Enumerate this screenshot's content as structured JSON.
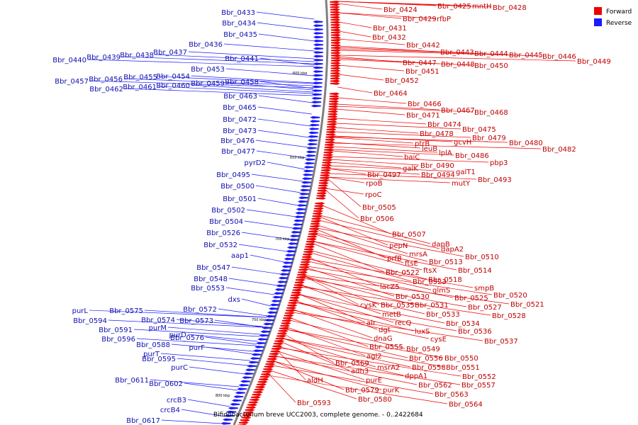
{
  "caption": "Bifidobacterium breve UCC2003, complete genome. - 0..2422684",
  "legend": [
    {
      "name": "Forward",
      "color": "#ee0000"
    },
    {
      "name": "Reverse",
      "color": "#1a1aff"
    }
  ],
  "colors": {
    "forward": "#ee0000",
    "reverse": "#1a1aff",
    "forward_text": "#c00000",
    "reverse_text": "#1010b0",
    "backbone": "#808080"
  },
  "ticks": [
    "600 kbp",
    "650 kbp",
    "700 kbp",
    "750 kbp",
    "800 kbp"
  ],
  "forward_labels": [
    "Bbr_0424",
    "Bbr_0425",
    "mntH",
    "Bbr_0428",
    "Bbr_0429",
    "rfbP",
    "Bbr_0431",
    "Bbr_0432",
    "Bbr_0442",
    "Bbr_0443",
    "Bbr_0444",
    "Bbr_0445",
    "Bbr_0446",
    "Bbr_0449",
    "Bbr_0447",
    "Bbr_0448",
    "Bbr_0450",
    "Bbr_0451",
    "Bbr_0452",
    "Bbr_0464",
    "Bbr_0466",
    "Bbr_0467",
    "Bbr_0468",
    "Bbr_0471",
    "Bbr_0474",
    "Bbr_0475",
    "Bbr_0478",
    "Bbr_0479",
    "ptrB",
    "gcvH",
    "Bbr_0480",
    "Bbr_0482",
    "leuB",
    "lplA",
    "Bbr_0486",
    "baiC",
    "pbp3",
    "Bbr_0490",
    "galK",
    "galT1",
    "Bbr_0494",
    "Bbr_0497",
    "Bbr_0493",
    "mutY",
    "rpoB",
    "rpoC",
    "Bbr_0505",
    "Bbr_0506",
    "Bbr_0507",
    "pepN",
    "dapB",
    "dapA2",
    "mrsA",
    "Bbr_0510",
    "prfB",
    "ftsE",
    "Bbr_0513",
    "ftsX",
    "Bbr_0514",
    "Bbr_0522",
    "Bbr_0518",
    "Bbr_0523",
    "lacZ5",
    "smpB",
    "glmS",
    "Bbr_0520",
    "Bbr_0530",
    "Bbr_0525",
    "Bbr_0521",
    "cysK",
    "Bbr_0535",
    "Bbr_0531",
    "Bbr_0527",
    "metB",
    "Bbr_0533",
    "Bbr_0528",
    "alr",
    "recQ",
    "Bbr_0534",
    "dgt",
    "luxS",
    "Bbr_0536",
    "dnaG",
    "cysE",
    "Bbr_0537",
    "Bbr_0555",
    "Bbr_0549",
    "agl2",
    "Bbr_0556",
    "Bbr_0550",
    "Bbr_0569",
    "msrA2",
    "Bbr_0558",
    "Bbr_0551",
    "adh3",
    "dppA1",
    "Bbr_0552",
    "purE",
    "Bbr_0557",
    "aldH",
    "Bbr_0562",
    "Bbr_0579",
    "purK",
    "Bbr_0563",
    "Bbr_0580",
    "Bbr_0564",
    "Bbr_0593"
  ],
  "reverse_labels": [
    "Bbr_0433",
    "Bbr_0434",
    "Bbr_0435",
    "Bbr_0436",
    "Bbr_0437",
    "Bbr_0438",
    "Bbr_0439",
    "Bbr_0440",
    "Bbr_0441",
    "Bbr_0453",
    "Bbr_0454",
    "Bbr_0455",
    "Bbr_0456",
    "Bbr_0457",
    "Bbr_0458",
    "Bbr_0459",
    "Bbr_0460",
    "Bbr_0461",
    "Bbr_0462",
    "Bbr_0463",
    "Bbr_0465",
    "Bbr_0472",
    "Bbr_0473",
    "Bbr_0476",
    "Bbr_0477",
    "pyrD2",
    "Bbr_0495",
    "Bbr_0500",
    "Bbr_0501",
    "Bbr_0502",
    "Bbr_0504",
    "Bbr_0526",
    "Bbr_0532",
    "aap1",
    "Bbr_0547",
    "Bbr_0548",
    "Bbr_0553",
    "dxs",
    "Bbr_0572",
    "Bbr_0573",
    "purL",
    "Bbr_0575",
    "Bbr_0574",
    "Bbr_0594",
    "purM",
    "Bbr_0591",
    "purD",
    "Bbr_0576",
    "Bbr_0596",
    "Bbr_0588",
    "purF",
    "purT",
    "Bbr_0595",
    "purC",
    "Bbr_0611",
    "Bbr_0602",
    "crcB3",
    "crcB4",
    "Bbr_0617"
  ]
}
